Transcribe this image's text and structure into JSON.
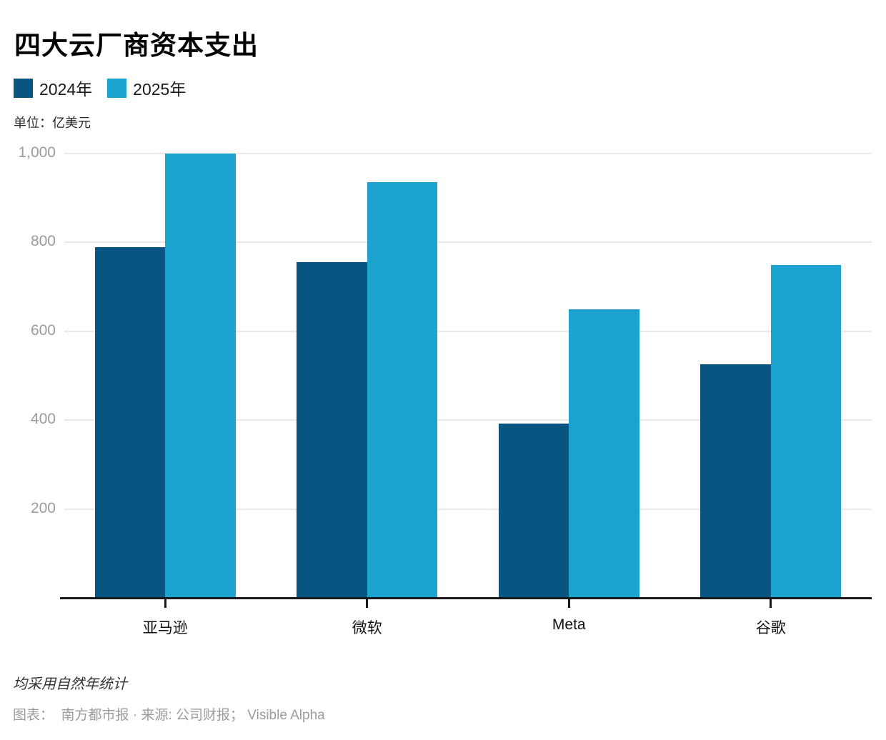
{
  "title": "四大云厂商资本支出",
  "legend": [
    {
      "label": "2024年",
      "color": "#075580"
    },
    {
      "label": "2025年",
      "color": "#1BA2CF"
    }
  ],
  "unit_label": "单位：亿美元",
  "footnote": "均采用自然年统计",
  "credit": "图表：  南方都市报 · 来源: 公司财报； Visible Alpha",
  "chart_data": {
    "type": "bar",
    "title": "四大云厂商资本支出",
    "categories": [
      "亚马逊",
      "微软",
      "Meta",
      "谷歌"
    ],
    "series": [
      {
        "name": "2024年",
        "color": "#075580",
        "values": [
          790,
          755,
          392,
          525
        ]
      },
      {
        "name": "2025年",
        "color": "#1BA2CF",
        "values": [
          1000,
          935,
          650,
          750
        ]
      }
    ],
    "xlabel": "",
    "ylabel": "亿美元",
    "ylim": [
      0,
      1000
    ],
    "yticks": [
      200,
      400,
      600,
      800,
      1000
    ],
    "grid": true,
    "legend_position": "top-left"
  }
}
